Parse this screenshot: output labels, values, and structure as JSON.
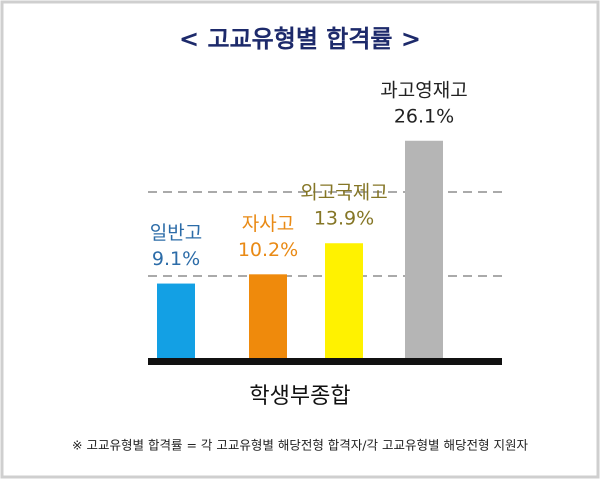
{
  "chart_data": {
    "type": "bar",
    "title": "< 고교유형별 합격률 >",
    "x_label": "학생부종합",
    "note": "※ 고교유형별 합격률 = 각 고교유형별 해당전형 합격자/각 고교유형별 해당전형 지원자",
    "categories": [
      "일반고",
      "자사고",
      "외고국제고",
      "과고영재고"
    ],
    "values": [
      9.1,
      10.2,
      13.9,
      26.1
    ],
    "value_labels": [
      "9.1%",
      "10.2%",
      "13.9%",
      "26.1%"
    ],
    "colors": [
      "#13a0e4",
      "#ef8a0c",
      "#fff200",
      "#b5b5b5"
    ],
    "label_colors": [
      "#2c6ca8",
      "#e98a15",
      "#857626",
      "#222222"
    ],
    "ylim": [
      0,
      30
    ],
    "grid_lines": [
      10,
      20
    ]
  }
}
